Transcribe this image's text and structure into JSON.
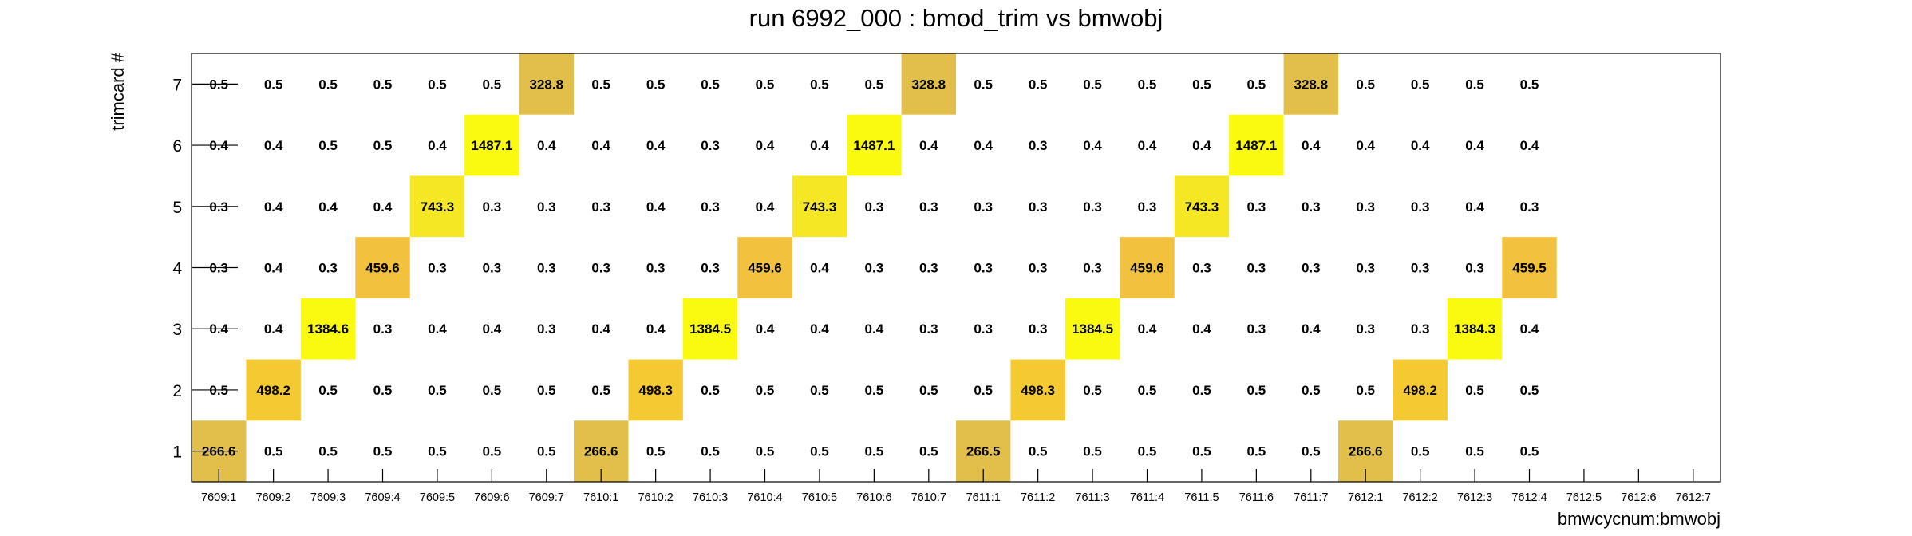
{
  "chart_data": {
    "type": "heatmap",
    "title": "run 6992_000 : bmod_trim vs bmwobj",
    "xlabel": "bmwcycnum:bmwobj",
    "ylabel": "trimcard #",
    "x_categories": [
      "7609:1",
      "7609:2",
      "7609:3",
      "7609:4",
      "7609:5",
      "7609:6",
      "7609:7",
      "7610:1",
      "7610:2",
      "7610:3",
      "7610:4",
      "7610:5",
      "7610:6",
      "7610:7",
      "7611:1",
      "7611:2",
      "7611:3",
      "7611:4",
      "7611:5",
      "7611:6",
      "7611:7",
      "7612:1",
      "7612:2",
      "7612:3",
      "7612:4",
      "7612:5",
      "7612:6",
      "7612:7"
    ],
    "y_categories": [
      "1",
      "2",
      "3",
      "4",
      "5",
      "6",
      "7"
    ],
    "values": [
      [
        "266.6",
        "0.5",
        "0.5",
        "0.5",
        "0.5",
        "0.5",
        "0.5",
        "266.6",
        "0.5",
        "0.5",
        "0.5",
        "0.5",
        "0.5",
        "0.5",
        "266.5",
        "0.5",
        "0.5",
        "0.5",
        "0.5",
        "0.5",
        "0.5",
        "266.6",
        "0.5",
        "0.5",
        "0.5",
        null,
        null,
        null
      ],
      [
        "0.5",
        "498.2",
        "0.5",
        "0.5",
        "0.5",
        "0.5",
        "0.5",
        "0.5",
        "498.3",
        "0.5",
        "0.5",
        "0.5",
        "0.5",
        "0.5",
        "0.5",
        "498.3",
        "0.5",
        "0.5",
        "0.5",
        "0.5",
        "0.5",
        "0.5",
        "498.2",
        "0.5",
        "0.5",
        null,
        null,
        null
      ],
      [
        "0.4",
        "0.4",
        "1384.6",
        "0.3",
        "0.4",
        "0.4",
        "0.3",
        "0.4",
        "0.4",
        "1384.5",
        "0.4",
        "0.4",
        "0.4",
        "0.3",
        "0.3",
        "0.3",
        "1384.5",
        "0.4",
        "0.4",
        "0.3",
        "0.4",
        "0.3",
        "0.3",
        "1384.3",
        "0.4",
        null,
        null,
        null
      ],
      [
        "0.3",
        "0.4",
        "0.3",
        "459.6",
        "0.3",
        "0.3",
        "0.3",
        "0.3",
        "0.3",
        "0.3",
        "459.6",
        "0.4",
        "0.3",
        "0.3",
        "0.3",
        "0.3",
        "0.3",
        "459.6",
        "0.3",
        "0.3",
        "0.3",
        "0.3",
        "0.3",
        "0.3",
        "459.5",
        null,
        null,
        null
      ],
      [
        "0.3",
        "0.4",
        "0.4",
        "0.4",
        "743.3",
        "0.3",
        "0.3",
        "0.3",
        "0.4",
        "0.3",
        "0.4",
        "743.3",
        "0.3",
        "0.3",
        "0.3",
        "0.3",
        "0.3",
        "0.3",
        "743.3",
        "0.3",
        "0.3",
        "0.3",
        "0.3",
        "0.4",
        "0.3",
        null,
        null,
        null
      ],
      [
        "0.4",
        "0.4",
        "0.5",
        "0.5",
        "0.4",
        "1487.1",
        "0.4",
        "0.4",
        "0.4",
        "0.3",
        "0.4",
        "0.4",
        "1487.1",
        "0.4",
        "0.4",
        "0.3",
        "0.4",
        "0.4",
        "0.4",
        "1487.1",
        "0.4",
        "0.4",
        "0.4",
        "0.4",
        "0.4",
        null,
        null,
        null
      ],
      [
        "0.5",
        "0.5",
        "0.5",
        "0.5",
        "0.5",
        "0.5",
        "328.8",
        "0.5",
        "0.5",
        "0.5",
        "0.5",
        "0.5",
        "0.5",
        "328.8",
        "0.5",
        "0.5",
        "0.5",
        "0.5",
        "0.5",
        "0.5",
        "328.8",
        "0.5",
        "0.5",
        "0.5",
        "0.5",
        null,
        null,
        null
      ]
    ],
    "colors": {
      "266.5": "#e2bf4a",
      "266.6": "#e2bf4a",
      "328.8": "#e2bf4a",
      "459.5": "#f2c13e",
      "459.6": "#f2c13e",
      "498.2": "#f5c932",
      "498.3": "#f5c932",
      "743.3": "#f5e724",
      "1384.3": "#f9fa0f",
      "1384.5": "#f9fa0f",
      "1384.6": "#f9fa0f",
      "1487.1": "#f9fa0f"
    },
    "grid": false,
    "legend": "none"
  }
}
